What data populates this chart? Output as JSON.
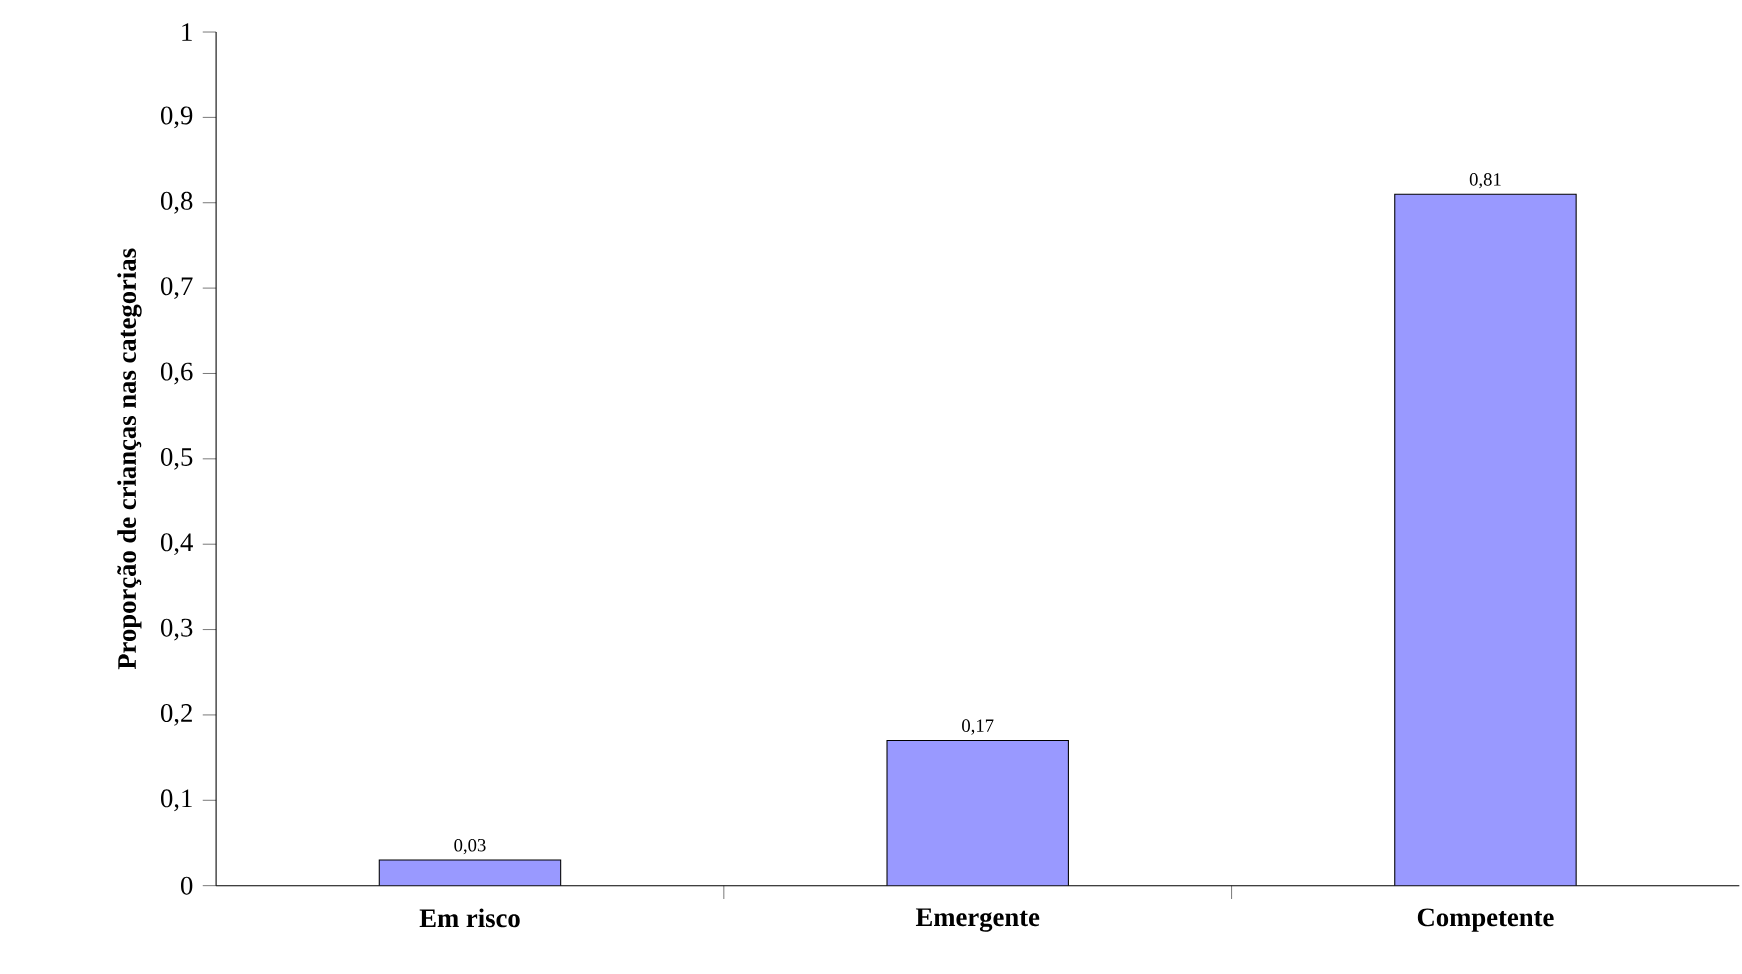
{
  "chart_data": {
    "type": "bar",
    "ylabel": "Proporção de crianças nas categorias",
    "categories": [
      "Em risco",
      "Emergente",
      "Competente"
    ],
    "values": [
      0.03,
      0.17,
      0.81
    ],
    "value_labels": [
      "0,03",
      "0,17",
      "0,81"
    ],
    "color": "#9999ff",
    "ylim": [
      0,
      1
    ],
    "yticks": [
      {
        "value": 0,
        "label": "0"
      },
      {
        "value": 0.1,
        "label": "0,1"
      },
      {
        "value": 0.2,
        "label": "0,2"
      },
      {
        "value": 0.3,
        "label": "0,3"
      },
      {
        "value": 0.4,
        "label": "0,4"
      },
      {
        "value": 0.5,
        "label": "0,5"
      },
      {
        "value": 0.6,
        "label": "0,6"
      },
      {
        "value": 0.7,
        "label": "0,7"
      },
      {
        "value": 0.8,
        "label": "0,8"
      },
      {
        "value": 0.9,
        "label": "0,9"
      },
      {
        "value": 1,
        "label": "1"
      }
    ],
    "grid": false
  }
}
